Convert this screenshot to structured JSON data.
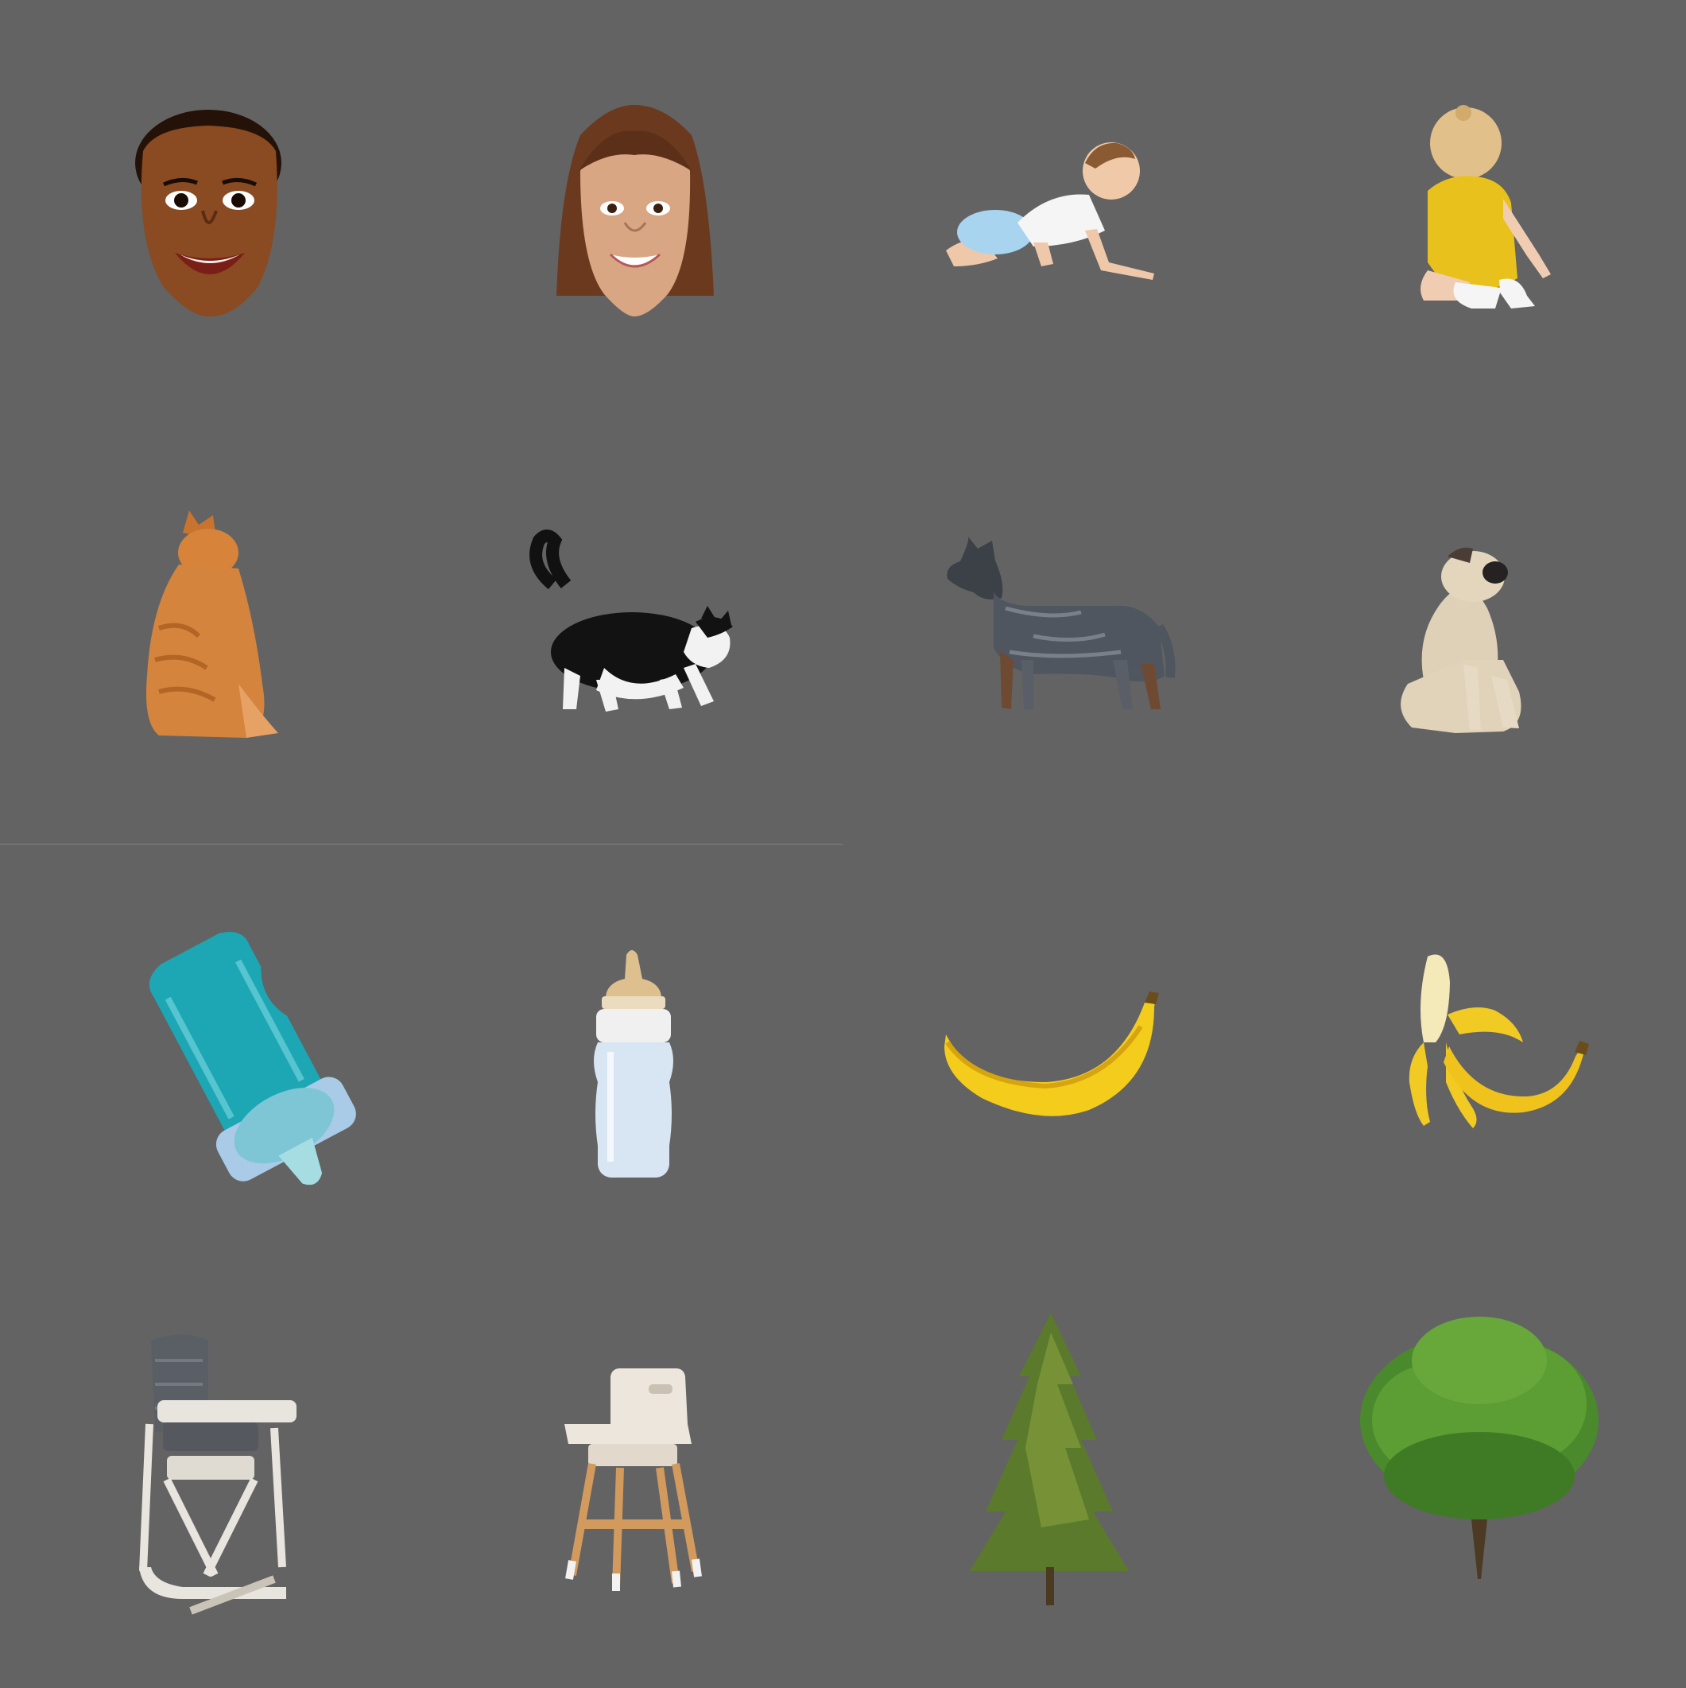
{
  "background_color": "#636363",
  "grid": {
    "rows": 4,
    "columns": 4
  },
  "stimuli": [
    {
      "name": "smiling-woman-face",
      "category": "face"
    },
    {
      "name": "smiling-woman-long-hair-face",
      "category": "face"
    },
    {
      "name": "crawling-baby",
      "category": "baby"
    },
    {
      "name": "sitting-baby-yellow-onesie",
      "category": "baby"
    },
    {
      "name": "orange-tabby-cat-sitting",
      "category": "cat"
    },
    {
      "name": "black-white-cat-walking",
      "category": "cat"
    },
    {
      "name": "blue-heeler-dog-standing",
      "category": "dog"
    },
    {
      "name": "pug-sitting",
      "category": "dog"
    },
    {
      "name": "teal-baby-bottle",
      "category": "bottle"
    },
    {
      "name": "clear-baby-bottle",
      "category": "bottle"
    },
    {
      "name": "whole-banana",
      "category": "banana"
    },
    {
      "name": "peeled-banana",
      "category": "banana"
    },
    {
      "name": "grey-high-chair",
      "category": "high-chair"
    },
    {
      "name": "wooden-high-chair",
      "category": "high-chair"
    },
    {
      "name": "pine-tree",
      "category": "tree"
    },
    {
      "name": "oak-tree",
      "category": "tree"
    }
  ]
}
